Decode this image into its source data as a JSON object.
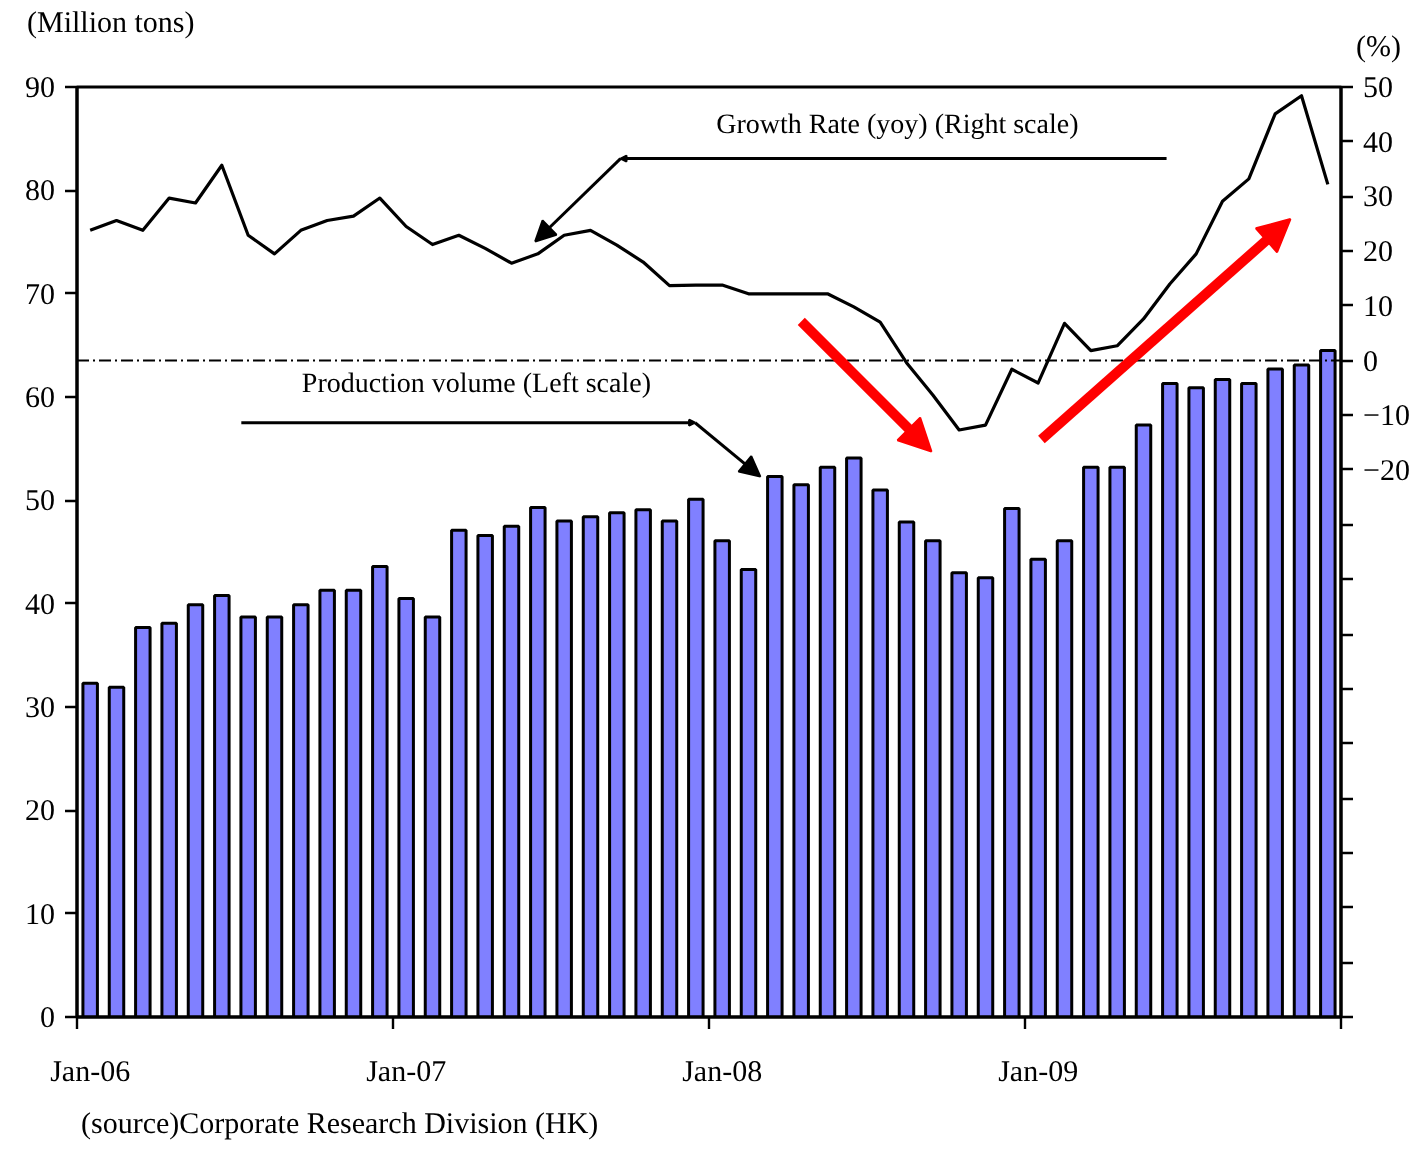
{
  "chart_data": {
    "type": "bar",
    "categories": [
      "Jan-06",
      null,
      null,
      null,
      null,
      null,
      null,
      null,
      null,
      null,
      null,
      null,
      "Jan-07",
      null,
      null,
      null,
      null,
      null,
      null,
      null,
      null,
      null,
      null,
      null,
      "Jan-08",
      null,
      null,
      null,
      null,
      null,
      null,
      null,
      null,
      null,
      null,
      null,
      "Jan-09",
      null,
      null,
      null,
      null,
      null,
      null,
      null,
      null,
      null,
      null,
      null
    ],
    "series": [
      {
        "color": "#8080ff",
        "values": [
          32.3,
          31.9,
          37.7,
          38.1,
          39.9,
          40.8,
          38.7,
          38.7,
          39.9,
          41.3,
          41.3,
          43.6,
          40.5,
          38.7,
          47.1,
          46.6,
          47.5,
          49.3,
          48.0,
          48.4,
          48.8,
          49.1,
          48.0,
          50.1,
          46.1,
          43.3,
          52.3,
          51.5,
          53.2,
          54.1,
          51.0,
          47.9,
          46.1,
          43.0,
          42.5,
          49.2,
          44.3,
          46.1,
          53.2,
          53.2,
          57.3,
          61.3,
          60.9,
          61.7,
          61.3,
          62.7,
          63.1,
          64.5
        ]
      },
      {
        "type": "line",
        "axis": "y2",
        "color": "#000000",
        "values": [
          23.8,
          25.6,
          23.8,
          29.7,
          28.8,
          35.7,
          22.9,
          19.5,
          23.8,
          25.6,
          26.4,
          29.7,
          24.5,
          21.2,
          22.9,
          20.5,
          17.8,
          19.5,
          22.9,
          23.8,
          21.1,
          18.0,
          13.7,
          13.8,
          13.8,
          12.2,
          12.2,
          12.2,
          12.2,
          9.8,
          7.0,
          -0.4,
          -6.3,
          -12.7,
          -11.8,
          -1.6,
          -4.1,
          6.8,
          1.8,
          2.7,
          7.6,
          14.0,
          19.5,
          29.1,
          33.2,
          45.1,
          48.4,
          32.2
        ]
      }
    ],
    "ylabel": "(Million tons)",
    "y2label": "(%)",
    "ylim": [
      0,
      90
    ],
    "yticks": [
      0,
      10,
      20,
      30,
      40,
      50,
      60,
      70,
      80,
      90
    ],
    "y2lim": [
      -120,
      50
    ],
    "y2ticks": [
      {
        "value": -120,
        "label": null
      },
      {
        "value": -110,
        "label": null
      },
      {
        "value": -100,
        "label": null
      },
      {
        "value": -90,
        "label": null
      },
      {
        "value": -80,
        "label": null
      },
      {
        "value": -70,
        "label": null
      },
      {
        "value": -60,
        "label": null
      },
      {
        "value": -50,
        "label": null
      },
      {
        "value": -40,
        "label": null
      },
      {
        "value": -30,
        "label": null
      },
      -20,
      -10,
      0,
      10,
      20,
      30,
      40,
      50
    ],
    "ref_lines": [
      {
        "axis": "y2",
        "value": 0,
        "color": "#000000",
        "line_style": "dashed"
      }
    ],
    "annotations": [
      "Production volume (Left scale)",
      "Growth Rate (yoy) (Right scale)",
      "(source)Corporate Research Division (HK)"
    ]
  }
}
